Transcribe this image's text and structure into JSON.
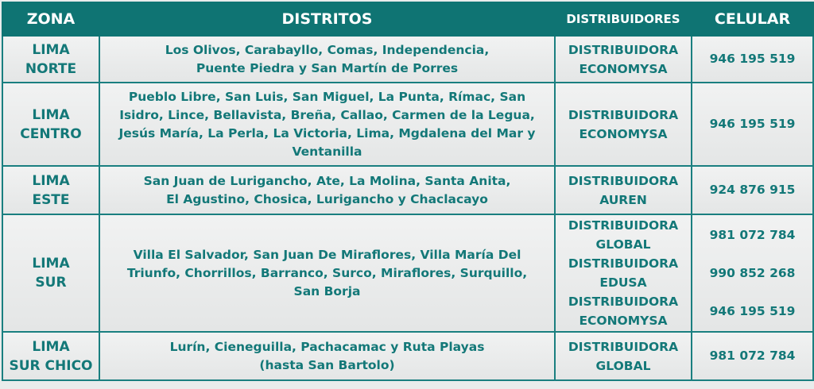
{
  "headers": {
    "zona": "ZONA",
    "distritos": "DISTRITOS",
    "distribuidores": "DISTRIBUIDORES",
    "celular": "CELULAR"
  },
  "colors": {
    "header_bg": "#0f7473",
    "text": "#137878",
    "cell_bg": "#ececec"
  },
  "rows": [
    {
      "zona": [
        "LIMA",
        "NORTE"
      ],
      "distritos": [
        "Los Olivos, Carabayllo, Comas, Independencia,",
        "Puente Piedra y San Martín de Porres"
      ],
      "distribuidores": [
        [
          "DISTRIBUIDORA",
          "ECONOMYSA"
        ]
      ],
      "celular": [
        "946 195 519"
      ]
    },
    {
      "zona": [
        "LIMA",
        "CENTRO"
      ],
      "distritos": [
        "Pueblo Libre, San Luis, San Miguel, La Punta, Rímac, San",
        "Isidro, Lince, Bellavista, Breña, Callao, Carmen de la Legua,",
        "Jesús María, La Perla, La Victoria, Lima, Mgdalena del Mar y",
        "Ventanilla"
      ],
      "distribuidores": [
        [
          "DISTRIBUIDORA",
          "ECONOMYSA"
        ]
      ],
      "celular": [
        "946 195 519"
      ]
    },
    {
      "zona": [
        "LIMA",
        "ESTE"
      ],
      "distritos": [
        "San Juan de Lurigancho, Ate, La Molina, Santa Anita,",
        "El Agustino, Chosica, Lurigancho y Chaclacayo"
      ],
      "distribuidores": [
        [
          "DISTRIBUIDORA",
          "AUREN"
        ]
      ],
      "celular": [
        "924 876 915"
      ]
    },
    {
      "zona": [
        "LIMA",
        "SUR"
      ],
      "distritos": [
        "Villa El Salvador, San Juan De Miraflores, Villa María Del",
        "Triunfo, Chorrillos, Barranco, Surco, Miraflores, Surquillo,",
        "San Borja"
      ],
      "distribuidores": [
        [
          "DISTRIBUIDORA",
          "GLOBAL"
        ],
        [
          "DISTRIBUIDORA",
          "EDUSA"
        ],
        [
          "DISTRIBUIDORA",
          "ECONOMYSA"
        ]
      ],
      "celular": [
        "981 072 784",
        "990 852 268",
        "946 195 519"
      ]
    },
    {
      "zona": [
        "LIMA",
        "SUR CHICO"
      ],
      "distritos": [
        "Lurín, Cieneguilla, Pachacamac y Ruta Playas",
        "(hasta San Bartolo)"
      ],
      "distribuidores": [
        [
          "DISTRIBUIDORA",
          "GLOBAL"
        ]
      ],
      "celular": [
        "981 072 784"
      ]
    }
  ]
}
